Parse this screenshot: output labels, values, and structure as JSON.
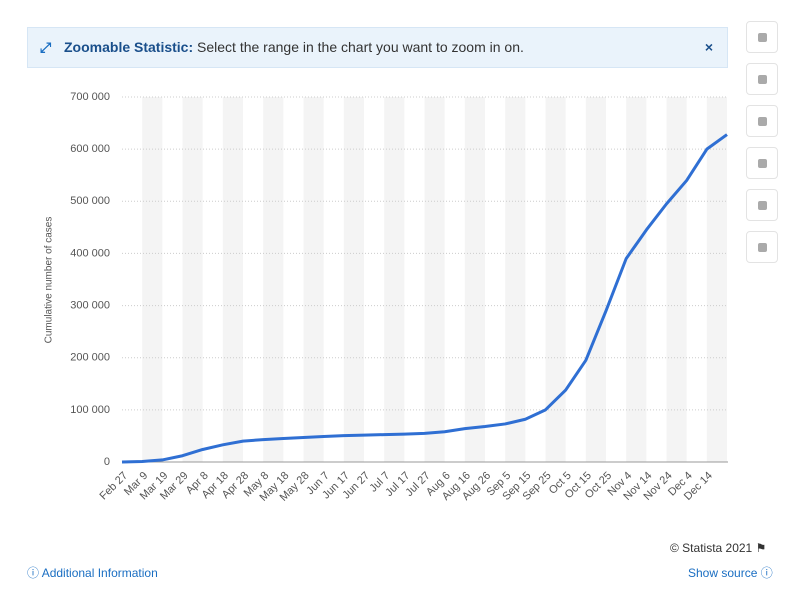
{
  "banner": {
    "title": "Zoomable Statistic:",
    "text": "Select the range in the chart you want to zoom in on."
  },
  "footer": {
    "copyright": "© Statista 2021",
    "info": "Additional Information",
    "source": "Show source"
  },
  "chart_data": {
    "type": "line",
    "y_label": "Cumulative number of cases",
    "categories": [
      "Feb 27",
      "Mar 9",
      "Mar 19",
      "Mar 29",
      "Apr 8",
      "Apr 18",
      "Apr 28",
      "May 8",
      "May 18",
      "May 28",
      "Jun 7",
      "Jun 17",
      "Jun 27",
      "Jul 7",
      "Jul 17",
      "Jul 27",
      "Aug 6",
      "Aug 16",
      "Aug 26",
      "Sep 5",
      "Sep 15",
      "Sep 25",
      "Oct 5",
      "Oct 15",
      "Oct 25",
      "Nov 4",
      "Nov 14",
      "Nov 24",
      "Dec 4",
      "Dec 14",
      null
    ],
    "values": [
      0,
      1000,
      4000,
      12000,
      24000,
      33000,
      40000,
      43000,
      45000,
      47000,
      49000,
      50500,
      51500,
      52500,
      53500,
      55000,
      58000,
      64000,
      68000,
      73000,
      82000,
      100000,
      138000,
      195000,
      290000,
      390000,
      445000,
      495000,
      540000,
      600000,
      628000
    ],
    "color": "#2f6fd3",
    "ylim": [
      0,
      700000
    ],
    "yticks": [
      0,
      {
        "value": 100000,
        "label": "100 000"
      },
      {
        "value": 200000,
        "label": "200 000"
      },
      {
        "value": 300000,
        "label": "300 000"
      },
      {
        "value": 400000,
        "label": "400 000"
      },
      {
        "value": 500000,
        "label": "500 000"
      },
      {
        "value": 600000,
        "label": "600 000"
      },
      {
        "value": 700000,
        "label": "700 000"
      }
    ],
    "grid": true
  }
}
